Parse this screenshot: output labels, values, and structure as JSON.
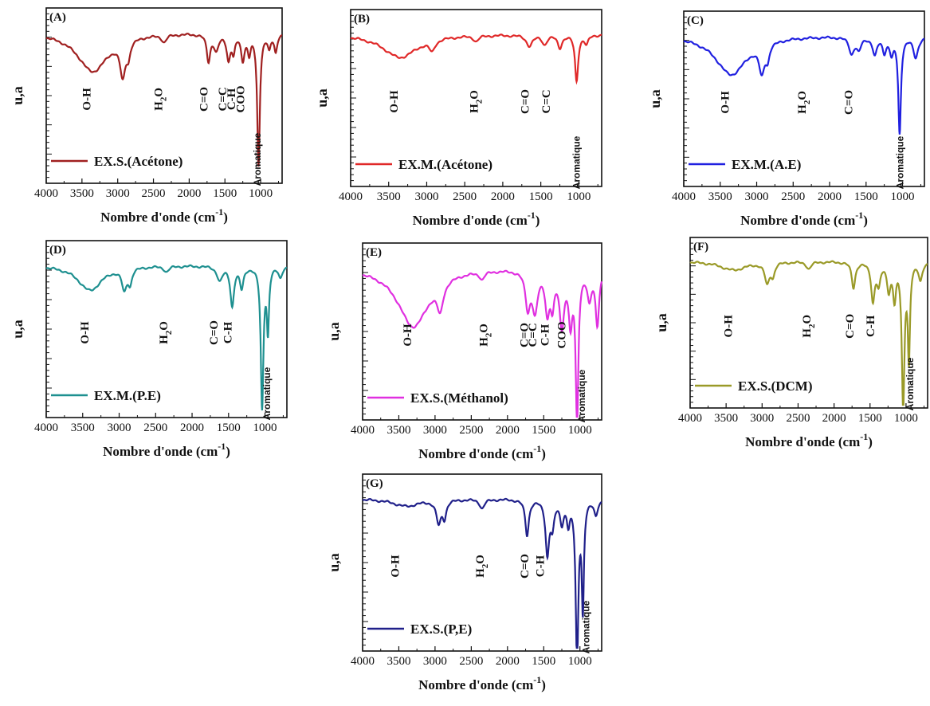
{
  "chart_data": [
    {
      "type": "line",
      "panel_label": "(A)",
      "legend": "EX.S.(Acétone)",
      "color": "#a02020",
      "xlabel": "Nombre d'onde (cm",
      "xlabel_sup": "-1",
      "xlabel_close": ")",
      "ylabel": "u,a",
      "xlim": [
        4000,
        700
      ],
      "xticks": [
        4000,
        3500,
        3000,
        2500,
        2000,
        1500,
        1000
      ],
      "peaks": [
        {
          "x": 3350,
          "depth": 0.22,
          "width": 260
        },
        {
          "x": 2930,
          "depth": 0.2,
          "width": 45
        },
        {
          "x": 2850,
          "depth": 0.08,
          "width": 30
        },
        {
          "x": 2350,
          "depth": 0.04,
          "width": 40
        },
        {
          "x": 1730,
          "depth": 0.15,
          "width": 30
        },
        {
          "x": 1620,
          "depth": 0.09,
          "width": 40
        },
        {
          "x": 1450,
          "depth": 0.14,
          "width": 30
        },
        {
          "x": 1380,
          "depth": 0.1,
          "width": 25
        },
        {
          "x": 1250,
          "depth": 0.14,
          "width": 30
        },
        {
          "x": 1160,
          "depth": 0.1,
          "width": 25
        },
        {
          "x": 1030,
          "depth": 0.75,
          "width": 22
        },
        {
          "x": 880,
          "depth": 0.08,
          "width": 25
        },
        {
          "x": 790,
          "depth": 0.1,
          "width": 25
        }
      ],
      "annotations": [
        {
          "x": 3380,
          "text": "O-H"
        },
        {
          "x": 2380,
          "text": "H",
          "sub": "2",
          "post": "O"
        },
        {
          "x": 1740,
          "text": "C=O"
        },
        {
          "x": 1480,
          "text": "C=C"
        },
        {
          "x": 1360,
          "text": "C-H"
        },
        {
          "x": 1230,
          "text": "COO"
        },
        {
          "x": 1000,
          "text": "Aromatique"
        }
      ]
    },
    {
      "type": "line",
      "panel_label": "(B)",
      "legend": "EX.M.(Acétone)",
      "color": "#e02828",
      "xlabel": "Nombre d'onde (cm",
      "xlabel_sup": "-1",
      "xlabel_close": ")",
      "ylabel": "u,a",
      "xlim": [
        4000,
        700
      ],
      "xticks": [
        4000,
        3500,
        3000,
        2500,
        2000,
        1500,
        1000
      ],
      "peaks": [
        {
          "x": 3350,
          "depth": 0.13,
          "width": 280
        },
        {
          "x": 2930,
          "depth": 0.06,
          "width": 45
        },
        {
          "x": 2350,
          "depth": 0.03,
          "width": 40
        },
        {
          "x": 1650,
          "depth": 0.06,
          "width": 50
        },
        {
          "x": 1450,
          "depth": 0.05,
          "width": 40
        },
        {
          "x": 1250,
          "depth": 0.07,
          "width": 35
        },
        {
          "x": 1030,
          "depth": 0.26,
          "width": 25
        },
        {
          "x": 900,
          "depth": 0.05,
          "width": 30
        }
      ],
      "annotations": [
        {
          "x": 3380,
          "text": "O-H"
        },
        {
          "x": 2330,
          "text": "H",
          "sub": "2",
          "post": "O"
        },
        {
          "x": 1660,
          "text": "C=O"
        },
        {
          "x": 1380,
          "text": "C=C"
        },
        {
          "x": 990,
          "text": "Aromatique"
        }
      ]
    },
    {
      "type": "line",
      "panel_label": "(C)",
      "legend": "EX.M.(A.E)",
      "color": "#2020e0",
      "xlabel": "Nombre d'onde (cm",
      "xlabel_sup": "-1",
      "xlabel_close": ")",
      "ylabel": "u,a",
      "xlim": [
        4000,
        700
      ],
      "xticks": [
        4000,
        3500,
        3000,
        2500,
        2000,
        1500,
        1000
      ],
      "peaks": [
        {
          "x": 3350,
          "depth": 0.22,
          "width": 260
        },
        {
          "x": 2930,
          "depth": 0.16,
          "width": 45
        },
        {
          "x": 2850,
          "depth": 0.08,
          "width": 30
        },
        {
          "x": 1700,
          "depth": 0.09,
          "width": 40
        },
        {
          "x": 1600,
          "depth": 0.07,
          "width": 40
        },
        {
          "x": 1380,
          "depth": 0.1,
          "width": 35
        },
        {
          "x": 1250,
          "depth": 0.08,
          "width": 30
        },
        {
          "x": 1150,
          "depth": 0.09,
          "width": 30
        },
        {
          "x": 1040,
          "depth": 0.55,
          "width": 22
        },
        {
          "x": 820,
          "depth": 0.12,
          "width": 40
        }
      ],
      "annotations": [
        {
          "x": 3380,
          "text": "O-H"
        },
        {
          "x": 2330,
          "text": "H",
          "sub": "2",
          "post": "O"
        },
        {
          "x": 1690,
          "text": "C=O"
        },
        {
          "x": 990,
          "text": "Aromatique"
        }
      ]
    },
    {
      "type": "line",
      "panel_label": "(D)",
      "legend": "EX.M.(P.E)",
      "color": "#1e9090",
      "xlabel": "Nombre d'onde (cm",
      "xlabel_sup": "-1",
      "xlabel_close": ")",
      "ylabel": "u,a",
      "xlim": [
        4000,
        700
      ],
      "xticks": [
        4000,
        3500,
        3000,
        2500,
        2000,
        1500,
        1000
      ],
      "peaks": [
        {
          "x": 3400,
          "depth": 0.14,
          "width": 200
        },
        {
          "x": 2930,
          "depth": 0.12,
          "width": 40
        },
        {
          "x": 2850,
          "depth": 0.08,
          "width": 30
        },
        {
          "x": 2350,
          "depth": 0.03,
          "width": 40
        },
        {
          "x": 1620,
          "depth": 0.08,
          "width": 45
        },
        {
          "x": 1450,
          "depth": 0.22,
          "width": 30
        },
        {
          "x": 1320,
          "depth": 0.12,
          "width": 30
        },
        {
          "x": 1040,
          "depth": 0.8,
          "width": 22
        },
        {
          "x": 960,
          "depth": 0.35,
          "width": 18
        },
        {
          "x": 790,
          "depth": 0.06,
          "width": 30
        }
      ],
      "annotations": [
        {
          "x": 3420,
          "text": "O-H"
        },
        {
          "x": 2340,
          "text": "H",
          "sub": "2",
          "post": "O"
        },
        {
          "x": 1650,
          "text": "C=O"
        },
        {
          "x": 1460,
          "text": "C-H"
        },
        {
          "x": 930,
          "text": "Aromatique"
        }
      ]
    },
    {
      "type": "line",
      "panel_label": "(E)",
      "legend": "EX.S.(Méthanol)",
      "color": "#e030e0",
      "xlabel": "Nombre d'onde (cm",
      "xlabel_sup": "-1",
      "xlabel_close": ")",
      "ylabel": "u,a",
      "xlim": [
        4000,
        700
      ],
      "xticks": [
        4000,
        3500,
        3000,
        2500,
        2000,
        1500,
        1000
      ],
      "peaks": [
        {
          "x": 3300,
          "depth": 0.33,
          "width": 260
        },
        {
          "x": 2930,
          "depth": 0.15,
          "width": 50
        },
        {
          "x": 2350,
          "depth": 0.04,
          "width": 40
        },
        {
          "x": 1720,
          "depth": 0.2,
          "width": 40
        },
        {
          "x": 1620,
          "depth": 0.22,
          "width": 45
        },
        {
          "x": 1450,
          "depth": 0.22,
          "width": 35
        },
        {
          "x": 1380,
          "depth": 0.18,
          "width": 30
        },
        {
          "x": 1250,
          "depth": 0.3,
          "width": 40
        },
        {
          "x": 1130,
          "depth": 0.28,
          "width": 30
        },
        {
          "x": 1040,
          "depth": 0.85,
          "width": 22
        },
        {
          "x": 870,
          "depth": 0.16,
          "width": 35
        },
        {
          "x": 760,
          "depth": 0.3,
          "width": 30
        }
      ],
      "annotations": [
        {
          "x": 3330,
          "text": "O-H"
        },
        {
          "x": 2280,
          "text": "H",
          "sub": "2",
          "post": "O"
        },
        {
          "x": 1720,
          "text": "C=O"
        },
        {
          "x": 1600,
          "text": "C=C"
        },
        {
          "x": 1430,
          "text": "C-H"
        },
        {
          "x": 1200,
          "text": "COO"
        },
        {
          "x": 930,
          "text": "Aromatique"
        }
      ]
    },
    {
      "type": "line",
      "panel_label": "(F)",
      "legend": "EX.S.(DCM)",
      "color": "#9a9a28",
      "xlabel": "Nombre d'onde (cm",
      "xlabel_sup": "-1",
      "xlabel_close": ")",
      "ylabel": "u,a",
      "xlim": [
        4000,
        700
      ],
      "xticks": [
        4000,
        3500,
        3000,
        2500,
        2000,
        1500,
        1000
      ],
      "peaks": [
        {
          "x": 3400,
          "depth": 0.05,
          "width": 220
        },
        {
          "x": 2930,
          "depth": 0.12,
          "width": 40
        },
        {
          "x": 2850,
          "depth": 0.07,
          "width": 30
        },
        {
          "x": 2350,
          "depth": 0.04,
          "width": 40
        },
        {
          "x": 1730,
          "depth": 0.15,
          "width": 30
        },
        {
          "x": 1460,
          "depth": 0.22,
          "width": 30
        },
        {
          "x": 1380,
          "depth": 0.12,
          "width": 30
        },
        {
          "x": 1240,
          "depth": 0.15,
          "width": 30
        },
        {
          "x": 1160,
          "depth": 0.2,
          "width": 25
        },
        {
          "x": 1040,
          "depth": 0.85,
          "width": 22
        },
        {
          "x": 960,
          "depth": 0.55,
          "width": 18
        },
        {
          "x": 800,
          "depth": 0.1,
          "width": 30
        }
      ],
      "annotations": [
        {
          "x": 3420,
          "text": "O-H"
        },
        {
          "x": 2330,
          "text": "H",
          "sub": "2",
          "post": "O"
        },
        {
          "x": 1730,
          "text": "C=O"
        },
        {
          "x": 1440,
          "text": "C-H"
        },
        {
          "x": 900,
          "text": "Aromatique"
        }
      ]
    },
    {
      "type": "line",
      "panel_label": "(G)",
      "legend": "EX.S.(P,E)",
      "color": "#20208a",
      "xlabel": "Nombre d'onde (cm",
      "xlabel_sup": "-1",
      "xlabel_close": ")",
      "ylabel": "u,a",
      "xlim": [
        4000,
        700
      ],
      "xticks": [
        4000,
        3500,
        3000,
        2500,
        2000,
        1500,
        1000
      ],
      "peaks": [
        {
          "x": 3400,
          "depth": 0.04,
          "width": 220
        },
        {
          "x": 2950,
          "depth": 0.13,
          "width": 40
        },
        {
          "x": 2870,
          "depth": 0.09,
          "width": 30
        },
        {
          "x": 2350,
          "depth": 0.05,
          "width": 40
        },
        {
          "x": 1730,
          "depth": 0.2,
          "width": 30
        },
        {
          "x": 1450,
          "depth": 0.3,
          "width": 30
        },
        {
          "x": 1380,
          "depth": 0.14,
          "width": 30
        },
        {
          "x": 1250,
          "depth": 0.12,
          "width": 30
        },
        {
          "x": 1160,
          "depth": 0.12,
          "width": 25
        },
        {
          "x": 1040,
          "depth": 0.92,
          "width": 22
        },
        {
          "x": 960,
          "depth": 0.6,
          "width": 18
        },
        {
          "x": 780,
          "depth": 0.08,
          "width": 30
        }
      ],
      "annotations": [
        {
          "x": 3500,
          "text": "O-H"
        },
        {
          "x": 2330,
          "text": "H",
          "sub": "2",
          "post": "O"
        },
        {
          "x": 1710,
          "text": "C=O"
        },
        {
          "x": 1500,
          "text": "C-H"
        },
        {
          "x": 870,
          "text": "Aromatique"
        }
      ]
    }
  ]
}
